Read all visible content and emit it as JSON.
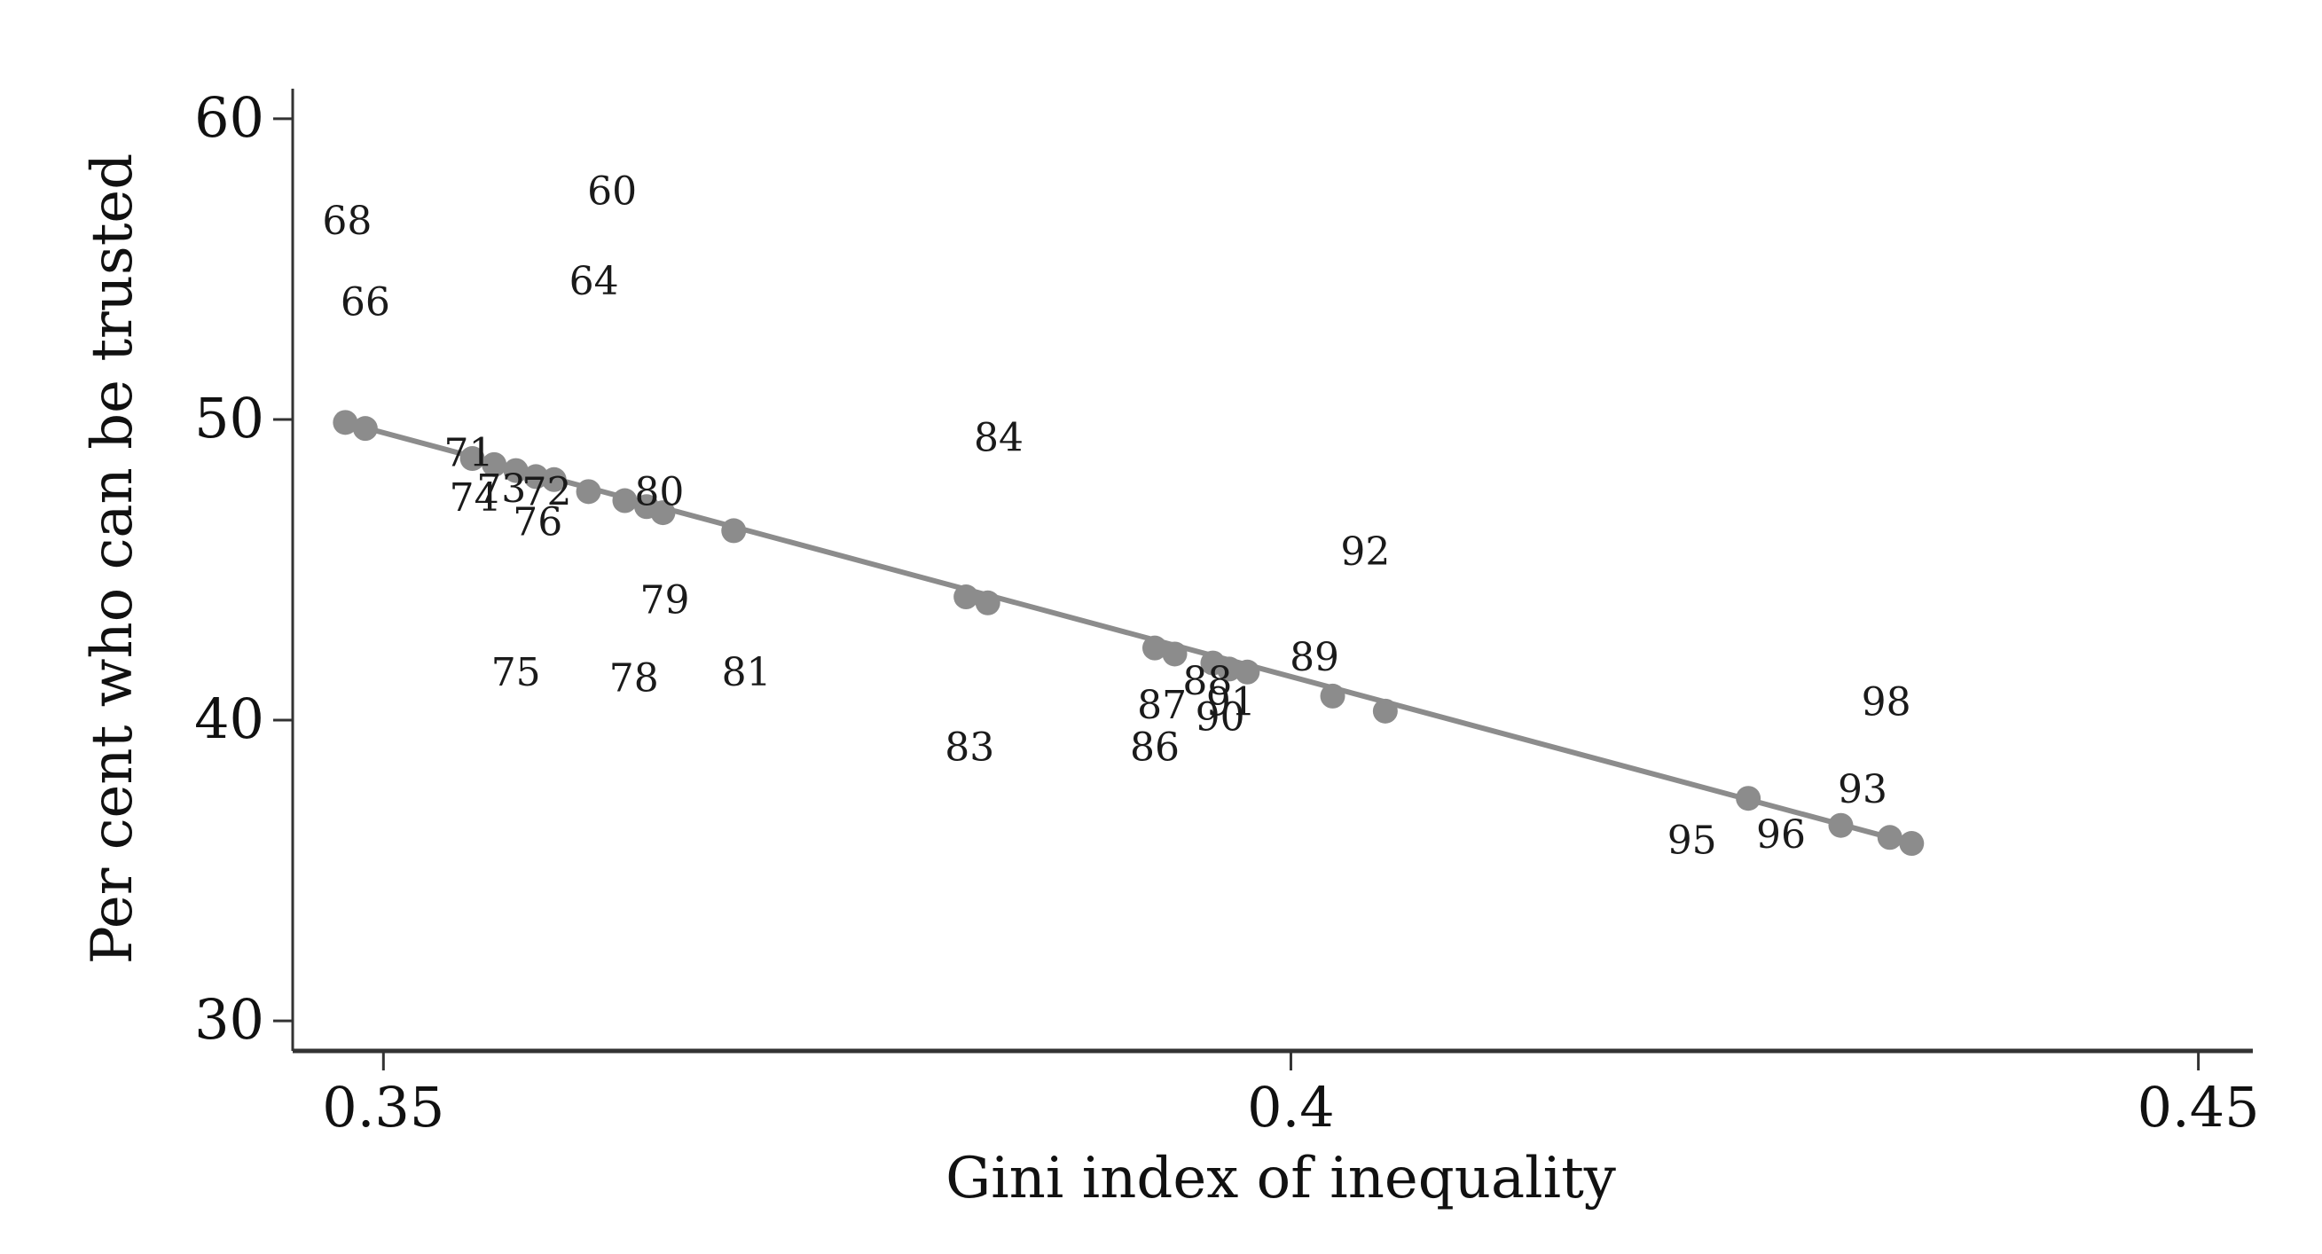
{
  "chart_data": {
    "type": "scatter",
    "xlabel": "Gini index of inequality",
    "ylabel": "Per cent who can be trusted",
    "xlim": [
      0.345,
      0.453
    ],
    "ylim": [
      29,
      61
    ],
    "x_ticks": [
      0.35,
      0.4,
      0.45
    ],
    "x_tick_labels": [
      "0.35",
      "0.4",
      "0.45"
    ],
    "y_ticks": [
      30,
      40,
      50,
      60
    ],
    "y_tick_labels": [
      "30",
      "40",
      "50",
      "60"
    ],
    "grid": false,
    "legend": "none",
    "colors": {
      "fit": "#8c8c8c",
      "points": "#8c8c8c",
      "labels": "#1a1a1a",
      "axes": "#333333"
    },
    "labeled_points": [
      {
        "label": "60",
        "x": 0.3626,
        "y": 57.6
      },
      {
        "label": "68",
        "x": 0.348,
        "y": 56.6
      },
      {
        "label": "66",
        "x": 0.349,
        "y": 53.9
      },
      {
        "label": "64",
        "x": 0.3616,
        "y": 54.6
      },
      {
        "label": "71",
        "x": 0.3547,
        "y": 48.9
      },
      {
        "label": "84",
        "x": 0.3839,
        "y": 49.4
      },
      {
        "label": "74",
        "x": 0.355,
        "y": 47.4
      },
      {
        "label": "73",
        "x": 0.3565,
        "y": 47.7
      },
      {
        "label": "72",
        "x": 0.359,
        "y": 47.6
      },
      {
        "label": "80",
        "x": 0.3652,
        "y": 47.6
      },
      {
        "label": "76",
        "x": 0.3585,
        "y": 46.6
      },
      {
        "label": "92",
        "x": 0.4041,
        "y": 45.6
      },
      {
        "label": "79",
        "x": 0.3655,
        "y": 44.0
      },
      {
        "label": "75",
        "x": 0.3573,
        "y": 41.6
      },
      {
        "label": "78",
        "x": 0.3638,
        "y": 41.4
      },
      {
        "label": "81",
        "x": 0.37,
        "y": 41.6
      },
      {
        "label": "89",
        "x": 0.4013,
        "y": 42.1
      },
      {
        "label": "88",
        "x": 0.3954,
        "y": 41.3
      },
      {
        "label": "87",
        "x": 0.3929,
        "y": 40.5
      },
      {
        "label": "91",
        "x": 0.3967,
        "y": 40.6
      },
      {
        "label": "90",
        "x": 0.3961,
        "y": 40.1
      },
      {
        "label": "83",
        "x": 0.3823,
        "y": 39.1
      },
      {
        "label": "86",
        "x": 0.3925,
        "y": 39.1
      },
      {
        "label": "98",
        "x": 0.4328,
        "y": 40.6
      },
      {
        "label": "93",
        "x": 0.4315,
        "y": 37.7
      },
      {
        "label": "95",
        "x": 0.4221,
        "y": 36.0
      },
      {
        "label": "96",
        "x": 0.427,
        "y": 36.2
      }
    ],
    "fitted_points": [
      {
        "x": 0.3479,
        "y": 49.9
      },
      {
        "x": 0.349,
        "y": 49.7
      },
      {
        "x": 0.3549,
        "y": 48.7
      },
      {
        "x": 0.3561,
        "y": 48.5
      },
      {
        "x": 0.3573,
        "y": 48.3
      },
      {
        "x": 0.3584,
        "y": 48.1
      },
      {
        "x": 0.3594,
        "y": 48.0
      },
      {
        "x": 0.3613,
        "y": 47.6
      },
      {
        "x": 0.3633,
        "y": 47.3
      },
      {
        "x": 0.3645,
        "y": 47.1
      },
      {
        "x": 0.3654,
        "y": 46.9
      },
      {
        "x": 0.3693,
        "y": 46.3
      },
      {
        "x": 0.3821,
        "y": 44.1
      },
      {
        "x": 0.3833,
        "y": 43.9
      },
      {
        "x": 0.3925,
        "y": 42.4
      },
      {
        "x": 0.3936,
        "y": 42.2
      },
      {
        "x": 0.3957,
        "y": 41.9
      },
      {
        "x": 0.3966,
        "y": 41.7
      },
      {
        "x": 0.3976,
        "y": 41.6
      },
      {
        "x": 0.4023,
        "y": 40.8
      },
      {
        "x": 0.4052,
        "y": 40.3
      },
      {
        "x": 0.4252,
        "y": 37.4
      },
      {
        "x": 0.4303,
        "y": 36.5
      },
      {
        "x": 0.433,
        "y": 36.1
      },
      {
        "x": 0.4342,
        "y": 35.9
      }
    ],
    "fit_line": {
      "x": [
        0.3479,
        0.4342
      ],
      "y": [
        49.9,
        35.9
      ]
    }
  }
}
